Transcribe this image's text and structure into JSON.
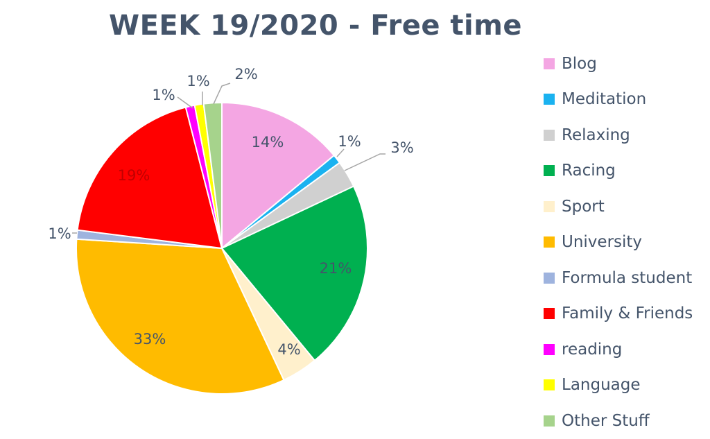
{
  "chart_data": {
    "type": "pie",
    "title": "WEEK 19/2020 - Free time",
    "legend_position": "right",
    "slices": [
      {
        "label": "Blog",
        "value": 14,
        "display": "14%",
        "color": "#f4a6e3"
      },
      {
        "label": "Meditation",
        "value": 1,
        "display": "1%",
        "color": "#1ab2f0"
      },
      {
        "label": "Relaxing",
        "value": 3,
        "display": "3%",
        "color": "#d0d0d0"
      },
      {
        "label": "Racing",
        "value": 21,
        "display": "21%",
        "color": "#00b050"
      },
      {
        "label": "Sport",
        "value": 4,
        "display": "4%",
        "color": "#fff0cc"
      },
      {
        "label": "University",
        "value": 33,
        "display": "33%",
        "color": "#ffbb00"
      },
      {
        "label": "Formula student",
        "value": 1,
        "display": "1%",
        "color": "#9eb3de"
      },
      {
        "label": "Family & Friends",
        "value": 19,
        "display": "19%",
        "color": "#ff0000"
      },
      {
        "label": "reading",
        "value": 1,
        "display": "1%",
        "color": "#ff00ff"
      },
      {
        "label": "Language",
        "value": 1,
        "display": "1%",
        "color": "#ffff00"
      },
      {
        "label": "Other Stuff",
        "value": 2,
        "display": "2%",
        "color": "#a6d38c"
      }
    ]
  }
}
